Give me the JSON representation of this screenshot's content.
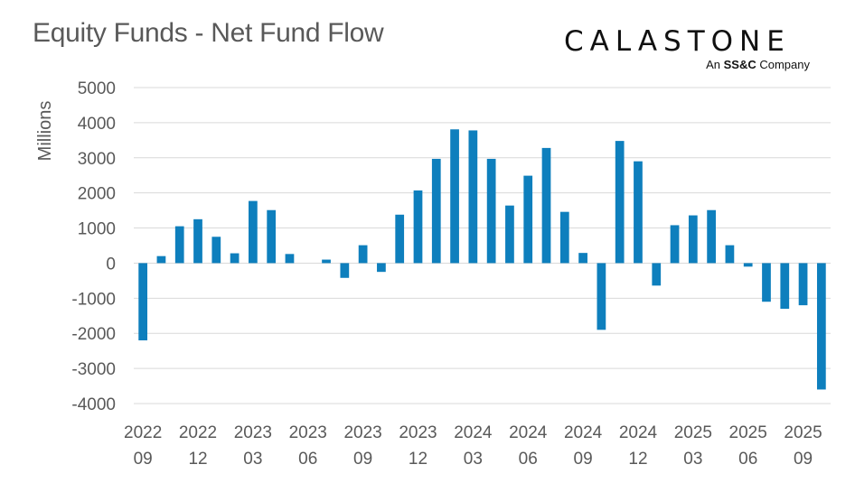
{
  "title": "Equity Funds - Net Fund Flow",
  "logo": {
    "wordmark": "CALASTONE",
    "sub_prefix": "An ",
    "sub_brand": "SS&C",
    "sub_suffix": " Company"
  },
  "chart_data": {
    "type": "bar",
    "title": "Equity Funds - Net Fund Flow",
    "ylabel": "Millions",
    "xlabel": "",
    "ylim": [
      -4000,
      5000
    ],
    "yticks": [
      5000,
      4000,
      3000,
      2000,
      1000,
      0,
      -1000,
      -2000,
      -3000,
      -4000
    ],
    "grid": true,
    "color": "#0e7fbd",
    "categories": [
      "2022-09",
      "2022-10",
      "2022-11",
      "2022-12",
      "2023-01",
      "2023-02",
      "2023-03",
      "2023-04",
      "2023-05",
      "2023-06",
      "2023-07",
      "2023-08",
      "2023-09",
      "2023-10",
      "2023-11",
      "2023-12",
      "2024-01",
      "2024-02",
      "2024-03",
      "2024-04",
      "2024-05",
      "2024-06",
      "2024-07",
      "2024-08",
      "2024-09",
      "2024-10",
      "2024-11",
      "2024-12",
      "2025-01",
      "2025-02",
      "2025-03",
      "2025-04",
      "2025-05",
      "2025-06",
      "2025-07",
      "2025-08",
      "2025-09",
      "2025-10"
    ],
    "values": [
      -2200,
      200,
      1050,
      1250,
      750,
      280,
      1770,
      1510,
      260,
      0,
      100,
      -420,
      510,
      -250,
      1380,
      2070,
      2970,
      3810,
      3780,
      2970,
      1640,
      2490,
      3280,
      1460,
      290,
      -1900,
      3480,
      2900,
      -640,
      1080,
      1360,
      1510,
      510,
      -100,
      -1100,
      -1300,
      -1200,
      -3600
    ],
    "tick_labels": [
      {
        "year": "2022",
        "month": "09"
      },
      {
        "year": "2022",
        "month": "12"
      },
      {
        "year": "2023",
        "month": "03"
      },
      {
        "year": "2023",
        "month": "06"
      },
      {
        "year": "2023",
        "month": "09"
      },
      {
        "year": "2023",
        "month": "12"
      },
      {
        "year": "2024",
        "month": "03"
      },
      {
        "year": "2024",
        "month": "06"
      },
      {
        "year": "2024",
        "month": "09"
      },
      {
        "year": "2024",
        "month": "12"
      },
      {
        "year": "2025",
        "month": "03"
      },
      {
        "year": "2025",
        "month": "06"
      },
      {
        "year": "2025",
        "month": "09"
      }
    ]
  }
}
